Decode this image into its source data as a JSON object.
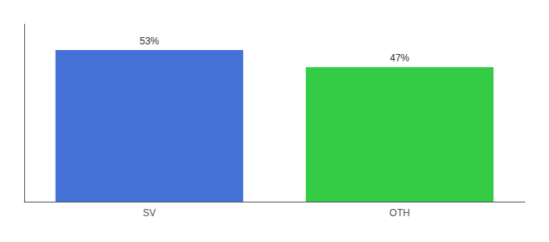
{
  "chart_data": {
    "type": "bar",
    "categories": [
      "SV",
      "OTH"
    ],
    "values": [
      53,
      47
    ],
    "colors": [
      "#4472d6",
      "#33cc44"
    ],
    "value_labels": [
      "53%",
      "47%"
    ],
    "data_labels": true,
    "ylim": [
      0,
      62
    ],
    "tick_labels": "x",
    "grid": false
  }
}
